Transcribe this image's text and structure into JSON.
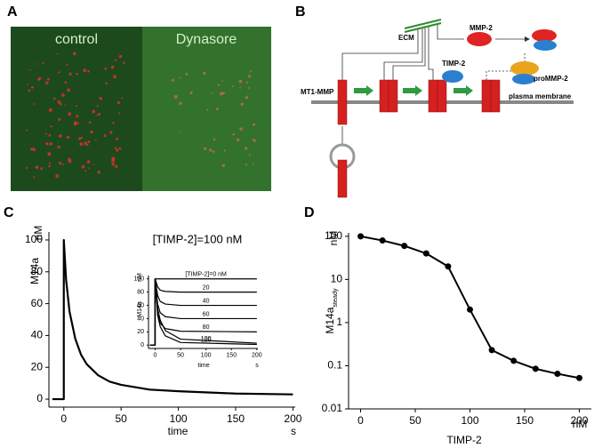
{
  "panel_labels": [
    "A",
    "B",
    "C",
    "D"
  ],
  "image_a": {
    "labels": [
      "control",
      "Dynasore"
    ]
  },
  "diagram_b": {
    "nodes": [
      {
        "label": "ECM"
      },
      {
        "label": "MMP-2"
      },
      {
        "label": "TIMP-2"
      },
      {
        "label": "proMMP-2"
      },
      {
        "label": "MT1-MMP"
      },
      {
        "label": "plasma membrane"
      }
    ]
  },
  "chart_data": [
    {
      "type": "line",
      "ylabel": "M14a",
      "yunit": "nM",
      "xlabel": "time",
      "xunit": "s",
      "annotation": "[TIMP-2]=100 nM",
      "x": [
        -10,
        0,
        0,
        2,
        5,
        10,
        15,
        20,
        30,
        40,
        50,
        75,
        100,
        150,
        200
      ],
      "values": [
        0,
        0,
        100,
        75,
        55,
        38,
        28,
        22,
        15,
        11,
        9,
        6,
        5,
        3.5,
        3
      ],
      "color": "#000000",
      "xlim": [
        -13,
        202
      ],
      "xticks": [
        0,
        50,
        100,
        150,
        200
      ],
      "ylim": [
        -5,
        105
      ],
      "yticks": [
        0,
        20,
        40,
        60,
        80,
        100
      ]
    },
    {
      "type": "line",
      "ylabel": "M14a",
      "yunit": "nM",
      "xlabel": "time",
      "xunit": "s",
      "x": [
        -10,
        0,
        0,
        5,
        10,
        20,
        50,
        200
      ],
      "series": [
        {
          "name": "[TIMP-2]=0 nM",
          "color": "#000000",
          "values": [
            0,
            0,
            100,
            100,
            100,
            100,
            100,
            100
          ]
        },
        {
          "name": "20",
          "color": "#000000",
          "values": [
            0,
            0,
            100,
            88,
            83,
            81,
            80,
            80
          ]
        },
        {
          "name": "40",
          "color": "#000000",
          "values": [
            0,
            0,
            100,
            75,
            66,
            62,
            60,
            60
          ]
        },
        {
          "name": "60",
          "color": "#000000",
          "values": [
            0,
            0,
            100,
            62,
            49,
            43,
            40,
            40
          ]
        },
        {
          "name": "80",
          "color": "#000000",
          "values": [
            0,
            0,
            100,
            50,
            33,
            25,
            21,
            20
          ]
        },
        {
          "name": "100",
          "color": "#000000",
          "values": [
            0,
            0,
            100,
            55,
            38,
            22,
            9,
            3
          ]
        },
        {
          "name": "120",
          "color": "#000000",
          "values": [
            0,
            0,
            100,
            45,
            28,
            14,
            4,
            1
          ]
        }
      ],
      "xlim": [
        -13,
        202
      ],
      "xticks": [
        0,
        50,
        100,
        150,
        200
      ],
      "ylim": [
        -5,
        105
      ],
      "yticks": [
        0,
        20,
        40,
        60,
        80,
        100
      ]
    },
    {
      "type": "line",
      "markers": true,
      "log_y": true,
      "ylabel": "M14a",
      "ylabel_sub": "steady",
      "yunit": "nM",
      "xlabel": "TIMP-2",
      "xunit": "nM",
      "x": [
        0,
        20,
        40,
        60,
        80,
        100,
        120,
        140,
        160,
        180,
        200
      ],
      "values": [
        100,
        80,
        60,
        40,
        20,
        2,
        0.23,
        0.13,
        0.085,
        0.065,
        0.052
      ],
      "color": "#000000",
      "xlim": [
        -11,
        211
      ],
      "xticks": [
        0,
        50,
        100,
        150,
        200
      ],
      "ylim": [
        0.01,
        120
      ],
      "yticks": [
        0.01,
        0.1,
        1,
        10,
        100
      ]
    }
  ]
}
